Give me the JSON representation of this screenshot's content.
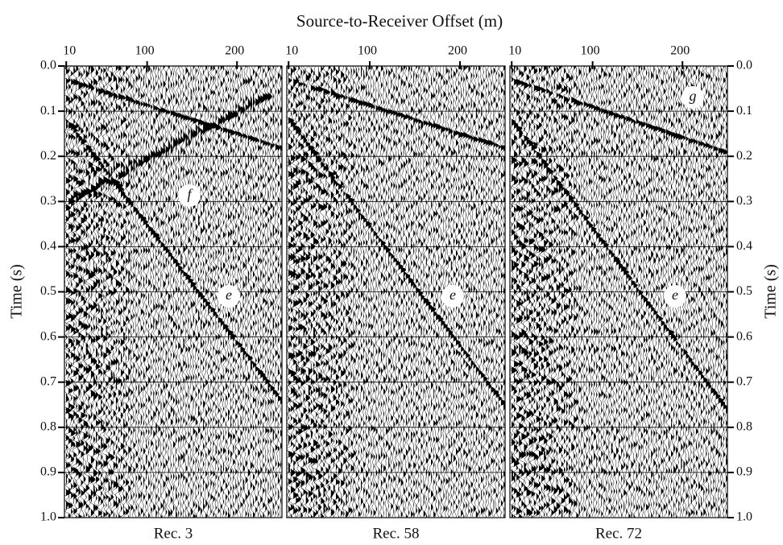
{
  "chart_data": {
    "type": "seismogram",
    "title": "Source-to-Receiver Offset (m)",
    "ylabel": "Time (s)",
    "xlim": [
      8,
      250
    ],
    "xticks": [
      10,
      100,
      200
    ],
    "ylim": [
      0,
      1
    ],
    "yticks": [
      {
        "value": 0,
        "label": "0.0"
      },
      0.1,
      0.2,
      0.3,
      0.4,
      0.5,
      0.6,
      0.7,
      0.8,
      0.9,
      {
        "value": 1,
        "label": "1.0"
      }
    ],
    "grid": true,
    "panels": [
      {
        "name": "Rec. 3",
        "annotations": [
          "f",
          "e"
        ]
      },
      {
        "name": "Rec. 58",
        "annotations": [
          "e"
        ]
      },
      {
        "name": "Rec. 72",
        "annotations": [
          "g",
          "e"
        ]
      }
    ]
  }
}
